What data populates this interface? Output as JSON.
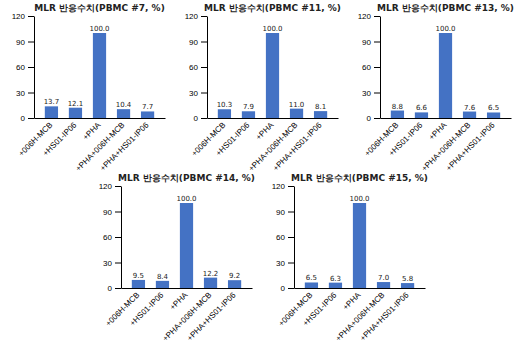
{
  "chart_data": [
    {
      "type": "bar",
      "title": "MLR 반응수치(PBMC #7, %)",
      "categories": [
        "+006H-MCB",
        "+HS01-IP06",
        "+PHA",
        "+PHA+006H-MCB",
        "+PHA+HS01-IP06"
      ],
      "values": [
        13.7,
        12.1,
        100.0,
        10.4,
        7.7
      ],
      "value_labels": [
        "13.7",
        "12.1",
        "100.0",
        "10.4",
        "7.7"
      ],
      "color": "#4472c4",
      "ylim": [
        0,
        120
      ],
      "yticks": [
        0,
        30,
        60,
        90,
        120
      ],
      "data_labels": true
    },
    {
      "type": "bar",
      "title": "MLR 반응수치(PBMC #11, %)",
      "categories": [
        "+006H-MCB",
        "+HS01-IP06",
        "+PHA",
        "+PHA+006H-MCB",
        "+PHA+HS01-IP06"
      ],
      "values": [
        10.3,
        7.9,
        100.0,
        11.0,
        8.1
      ],
      "value_labels": [
        "10.3",
        "7.9",
        "100.0",
        "11.0",
        "8.1"
      ],
      "color": "#4472c4",
      "ylim": [
        0,
        120
      ],
      "yticks": [
        0,
        30,
        60,
        90,
        120
      ],
      "data_labels": true
    },
    {
      "type": "bar",
      "title": "MLR 반응수치(PBMC #13, %)",
      "categories": [
        "+006H-MCB",
        "+HS01-IP06",
        "+PHA",
        "+PHA+006H-MCB",
        "+PHA+HS01-IP06"
      ],
      "values": [
        8.8,
        6.6,
        100.0,
        7.6,
        6.5
      ],
      "value_labels": [
        "8.8",
        "6.6",
        "100.0",
        "7.6",
        "6.5"
      ],
      "color": "#4472c4",
      "ylim": [
        0,
        120
      ],
      "yticks": [
        0,
        30,
        60,
        90,
        120
      ],
      "data_labels": true
    },
    {
      "type": "bar",
      "title": "MLR 반응수치(PBMC #14, %)",
      "categories": [
        "+006H-MCB",
        "+HS01-IP06",
        "+PHA",
        "+PHA+006H-MCB",
        "+PHA+HS01-IP06"
      ],
      "values": [
        9.5,
        8.4,
        100.0,
        12.2,
        9.2
      ],
      "value_labels": [
        "9.5",
        "8.4",
        "100.0",
        "12.2",
        "9.2"
      ],
      "color": "#4472c4",
      "ylim": [
        0,
        120
      ],
      "yticks": [
        0,
        30,
        60,
        90,
        120
      ],
      "data_labels": true
    },
    {
      "type": "bar",
      "title": "MLR 반응수치(PBMC #15, %)",
      "categories": [
        "+006H-MCB",
        "+HS01-IP06",
        "+PHA",
        "+PHA+006H-MCB",
        "+PHA+HS01-IP06"
      ],
      "values": [
        6.5,
        6.3,
        100.0,
        7.0,
        5.8
      ],
      "value_labels": [
        "6.5",
        "6.3",
        "100.0",
        "7.0",
        "5.8"
      ],
      "color": "#4472c4",
      "ylim": [
        0,
        120
      ],
      "yticks": [
        0,
        30,
        60,
        90,
        120
      ],
      "data_labels": true
    }
  ]
}
